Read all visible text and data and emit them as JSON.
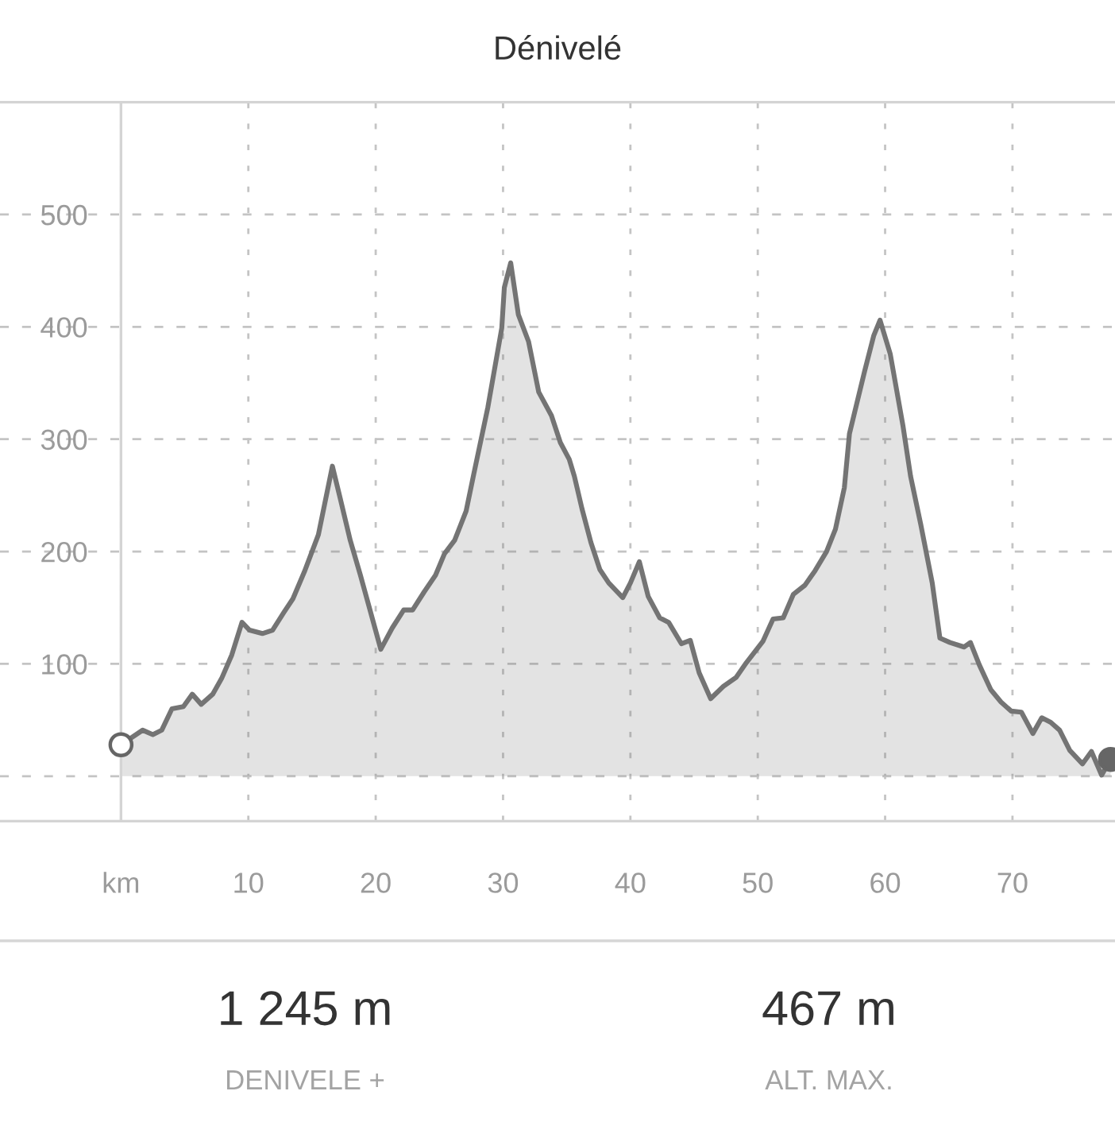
{
  "chart_data": {
    "type": "area",
    "title": "Dénivelé",
    "xlim": [
      -9.5,
      78.05
    ],
    "ylim": [
      -40,
      600
    ],
    "xticks": [
      {
        "value": 0,
        "label": "km"
      },
      10,
      20,
      30,
      40,
      50,
      60,
      70
    ],
    "yticks": [
      {
        "value": 0,
        "label": null
      },
      100,
      200,
      300,
      400,
      500
    ],
    "grid": true,
    "series": [
      {
        "color": "#747474",
        "x": [
          0,
          1.7,
          2.5,
          3.2,
          4.0,
          4.9,
          5.6,
          6.3,
          7.2,
          7.9,
          8.7,
          9.5,
          10.1,
          11.1,
          11.9,
          12.8,
          13.5,
          14.4,
          15.5,
          16.6,
          17.2,
          18.0,
          18.8,
          20.4,
          21.3,
          22.2,
          22.9,
          23.8,
          24.7,
          25.4,
          26.2,
          27.1,
          27.7,
          28.8,
          29.9,
          30.1,
          30.6,
          31.2,
          32.0,
          32.8,
          33.8,
          34.5,
          35.2,
          35.6,
          36.2,
          36.9,
          37.6,
          38.3,
          39.4,
          40.0,
          40.7,
          41.4,
          42.3,
          43.0,
          44.0,
          44.7,
          45.4,
          46.3,
          47.3,
          48.3,
          49.1,
          50.4,
          51.2,
          52.0,
          52.8,
          53.7,
          54.5,
          55.4,
          56.1,
          56.8,
          57.2,
          58.4,
          59.1,
          59.6,
          60.4,
          61.4,
          62.0,
          62.8,
          63.7,
          64.3,
          65.1,
          66.2,
          66.7,
          67.4,
          68.3,
          69.1,
          69.9,
          70.7,
          71.6,
          72.3,
          73.0,
          73.7,
          74.5,
          75.5,
          76.2,
          77.0,
          77.7
        ],
        "values": [
          28,
          41,
          37,
          41,
          60,
          62,
          73,
          64,
          73,
          87,
          108,
          137,
          130,
          127,
          130,
          146,
          158,
          182,
          215,
          276,
          248,
          210,
          179,
          113,
          132,
          148,
          148,
          164,
          179,
          198,
          210,
          236,
          269,
          328,
          399,
          435,
          457,
          411,
          387,
          342,
          321,
          297,
          282,
          267,
          238,
          208,
          184,
          172,
          159,
          172,
          191,
          160,
          141,
          137,
          118,
          121,
          92,
          69,
          80,
          88,
          101,
          120,
          140,
          141,
          162,
          170,
          183,
          200,
          220,
          257,
          305,
          361,
          392,
          406,
          376,
          312,
          267,
          224,
          172,
          123,
          119,
          115,
          119,
          99,
          77,
          66,
          58,
          57,
          38,
          52,
          48,
          41,
          23,
          11,
          22,
          1,
          15
        ]
      },
      {
        "type": "scatter",
        "marker": "circle",
        "color": "#666666",
        "colors": [
          "#ffffff",
          "#666666"
        ],
        "x": [
          0,
          77.7
        ],
        "values": [
          28,
          15
        ]
      }
    ],
    "annotations": [
      "1 245 m",
      "DENIVELE +",
      "467 m",
      "ALT. MAX."
    ]
  }
}
